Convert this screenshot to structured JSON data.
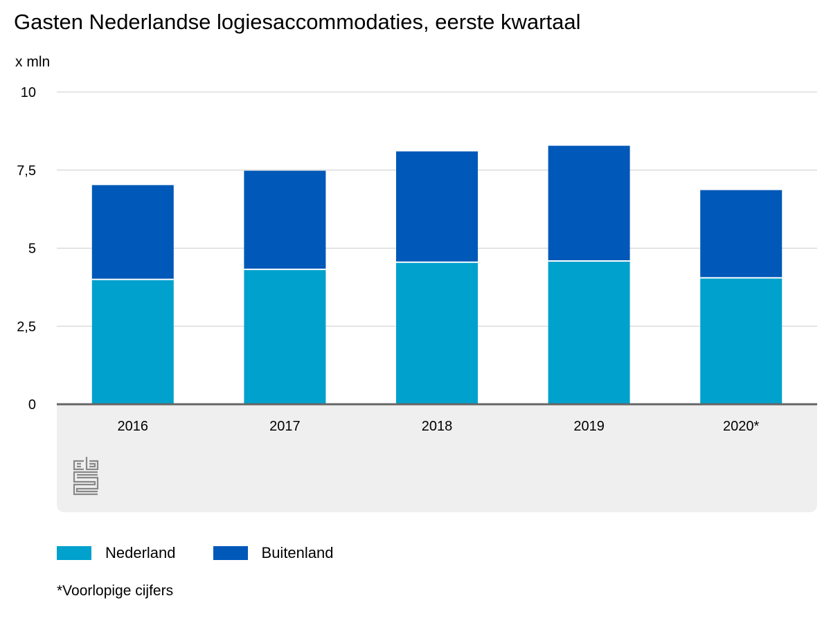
{
  "title": "Gasten Nederlandse logiesaccommodaties, eerste kwartaal",
  "unit_label": "x mln",
  "footnote": "*Voorlopige cijfers",
  "colors": {
    "nederland": "#00a1cd",
    "buitenland": "#0058b8",
    "grid": "#cccccc",
    "axis": "#666666",
    "footer_bg": "#efefef",
    "logo": "#888888"
  },
  "logo": {
    "name": "cbs-logo",
    "text": "cbs"
  },
  "chart_data": {
    "type": "bar",
    "stacked": true,
    "categories": [
      "2016",
      "2017",
      "2018",
      "2019",
      "2020*"
    ],
    "series": [
      {
        "name": "Nederland",
        "values": [
          4.0,
          4.32,
          4.55,
          4.59,
          4.05
        ]
      },
      {
        "name": "Buitenland",
        "values": [
          3.02,
          3.16,
          3.55,
          3.69,
          2.81
        ]
      }
    ],
    "ylim": [
      0,
      10
    ],
    "yticks": [
      0,
      2.5,
      5,
      7.5,
      10
    ],
    "ytick_labels": [
      "0",
      "2,5",
      "5",
      "7,5",
      "10"
    ],
    "grid": true,
    "legend_position": "bottom-left"
  }
}
